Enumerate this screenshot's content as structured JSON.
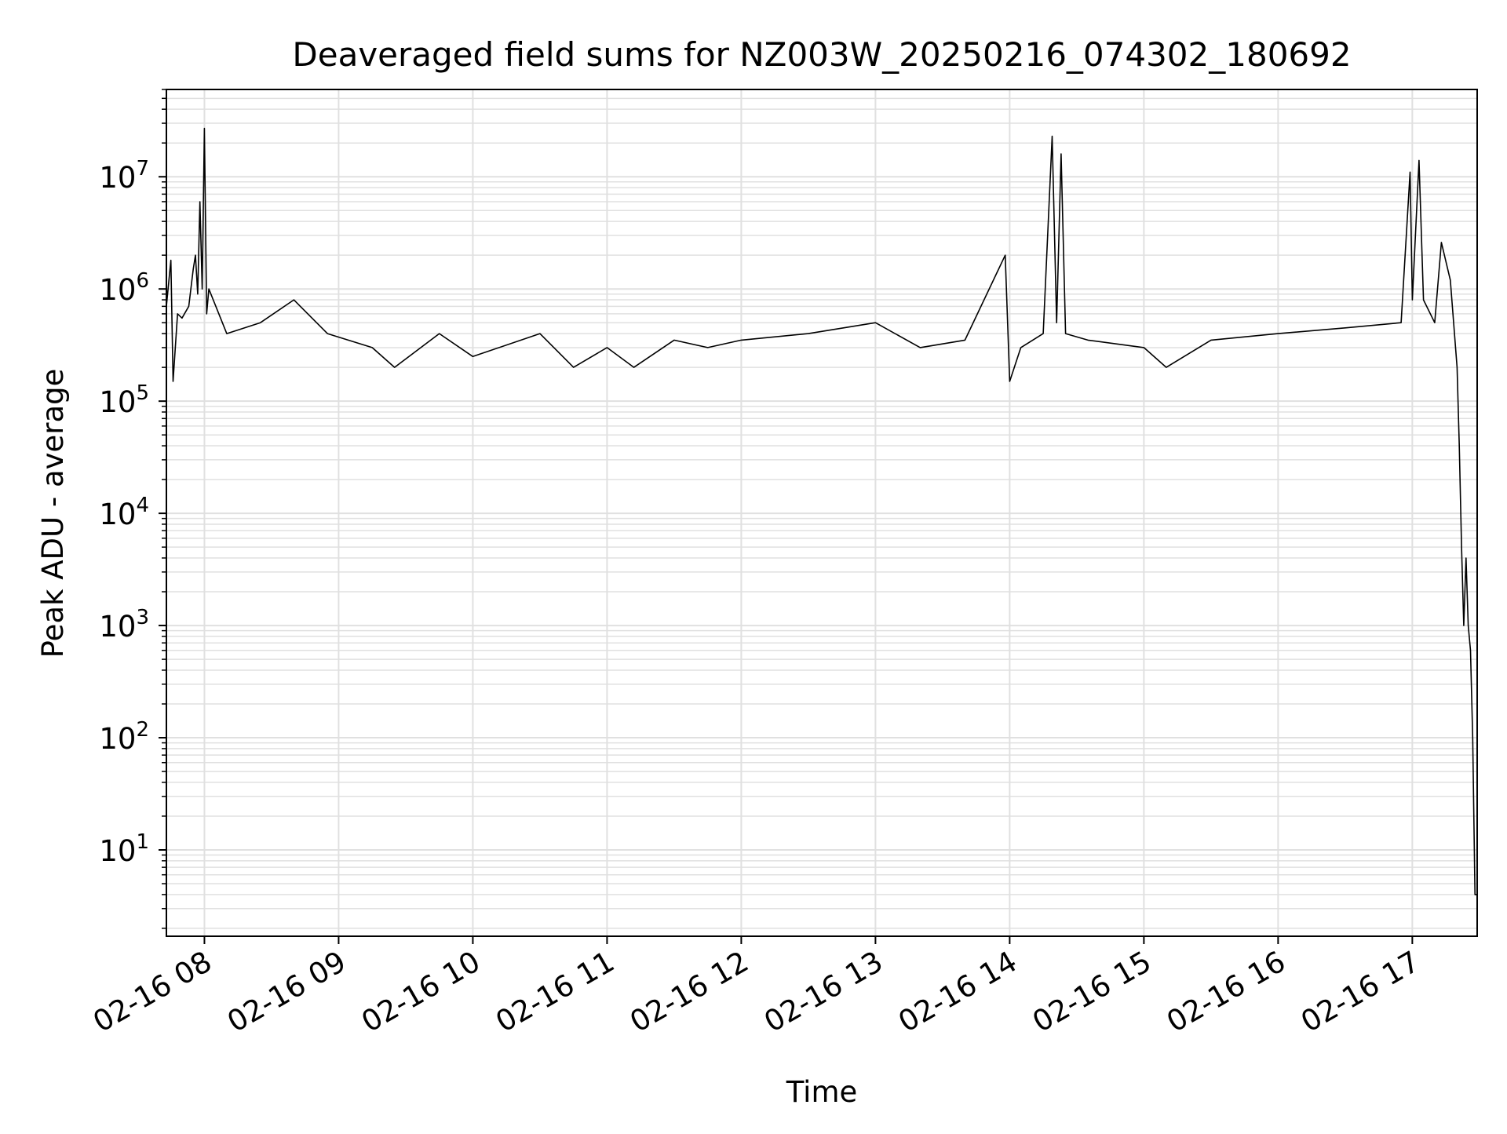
{
  "chart_data": {
    "type": "line",
    "title": "Deaveraged field sums for NZ003W_20250216_074302_180692",
    "xlabel": "Time",
    "ylabel": "Peak ADU - average",
    "yscale": "log",
    "ylim": [
      1.7,
      60000000
    ],
    "xlim": [
      "02-16 07:43",
      "02-16 17:29"
    ],
    "grid": true,
    "legend": "none",
    "line_color": "#000000",
    "grid_color": "#e0e0e0",
    "x_tick_labels": [
      "02-16 08",
      "02-16 09",
      "02-16 10",
      "02-16 11",
      "02-16 12",
      "02-16 13",
      "02-16 14",
      "02-16 15",
      "02-16 16",
      "02-16 17"
    ],
    "x_tick_values": [
      "02-16 08:00",
      "02-16 09:00",
      "02-16 10:00",
      "02-16 11:00",
      "02-16 12:00",
      "02-16 13:00",
      "02-16 14:00",
      "02-16 15:00",
      "02-16 16:00",
      "02-16 17:00"
    ],
    "y_tick_values": [
      10,
      100,
      1000,
      10000,
      100000,
      1000000,
      10000000
    ],
    "y_tick_labels": [
      {
        "base": "10",
        "exp": "1"
      },
      {
        "base": "10",
        "exp": "2"
      },
      {
        "base": "10",
        "exp": "3"
      },
      {
        "base": "10",
        "exp": "4"
      },
      {
        "base": "10",
        "exp": "5"
      },
      {
        "base": "10",
        "exp": "6"
      },
      {
        "base": "10",
        "exp": "7"
      }
    ],
    "series": [
      {
        "x": [
          "02-16 07:43",
          "02-16 07:45",
          "02-16 07:46",
          "02-16 07:48",
          "02-16 07:50",
          "02-16 07:53",
          "02-16 07:55",
          "02-16 07:56",
          "02-16 07:57",
          "02-16 07:58",
          "02-16 07:59",
          "02-16 08:00",
          "02-16 08:01",
          "02-16 08:02",
          "02-16 08:10",
          "02-16 08:25",
          "02-16 08:40",
          "02-16 08:55",
          "02-16 09:15",
          "02-16 09:25",
          "02-16 09:45",
          "02-16 10:00",
          "02-16 10:30",
          "02-16 10:45",
          "02-16 11:00",
          "02-16 11:12",
          "02-16 11:30",
          "02-16 11:45",
          "02-16 12:00",
          "02-16 12:30",
          "02-16 13:00",
          "02-16 13:20",
          "02-16 13:40",
          "02-16 13:58",
          "02-16 14:00",
          "02-16 14:05",
          "02-16 14:15",
          "02-16 14:19",
          "02-16 14:21",
          "02-16 14:23",
          "02-16 14:25",
          "02-16 14:35",
          "02-16 15:00",
          "02-16 15:10",
          "02-16 15:30",
          "02-16 16:00",
          "02-16 16:30",
          "02-16 16:55",
          "02-16 16:59",
          "02-16 17:00",
          "02-16 17:03",
          "02-16 17:05",
          "02-16 17:10",
          "02-16 17:13",
          "02-16 17:17",
          "02-16 17:20",
          "02-16 17:21",
          "02-16 17:22",
          "02-16 17:23",
          "02-16 17:24",
          "02-16 17:25",
          "02-16 17:26",
          "02-16 17:27",
          "02-16 17:28",
          "02-16 17:29"
        ],
        "y": [
          700000,
          1800000,
          150000,
          600000,
          550000,
          700000,
          1500000,
          2000000,
          900000,
          6000000,
          1000000,
          27000000,
          600000,
          1000000,
          400000,
          500000,
          800000,
          400000,
          300000,
          200000,
          400000,
          250000,
          400000,
          200000,
          300000,
          200000,
          350000,
          300000,
          350000,
          400000,
          500000,
          300000,
          350000,
          2000000,
          150000,
          300000,
          400000,
          23000000,
          500000,
          16000000,
          400000,
          350000,
          300000,
          200000,
          350000,
          400000,
          450000,
          500000,
          11000000,
          800000,
          14000000,
          800000,
          500000,
          2600000,
          1200000,
          200000,
          40000,
          5000,
          1000,
          4000,
          1000,
          600,
          100,
          4,
          4
        ]
      }
    ]
  }
}
